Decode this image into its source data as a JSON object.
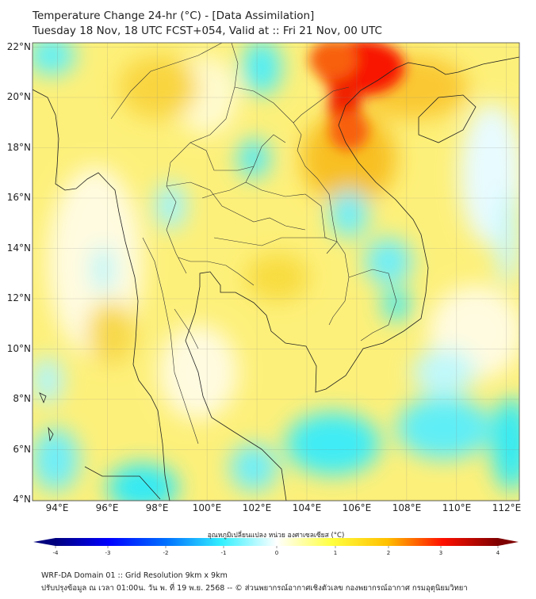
{
  "title": {
    "line1": "Temperature Change 24-hr (°C) - [Data Assimilation]",
    "line2": "Tuesday 18 Nov, 18 UTC FCST+054, Valid at :: Fri 21 Nov, 00 UTC"
  },
  "map": {
    "lat_labels": [
      "22°N",
      "20°N",
      "18°N",
      "16°N",
      "14°N",
      "12°N",
      "10°N",
      "8°N",
      "6°N",
      "4°N"
    ],
    "lon_labels": [
      "94°E",
      "96°E",
      "98°E",
      "100°E",
      "102°E",
      "104°E",
      "106°E",
      "108°E",
      "110°E",
      "112°E"
    ]
  },
  "colorbar": {
    "label": "อุณหภูมิเปลี่ยนแปลง หน่วย องศาเซลเซียส (°C)",
    "ticks": [
      "-4",
      "-3",
      "-2",
      "-1",
      "0",
      "1",
      "2",
      "3",
      "4"
    ],
    "range": [
      -4,
      4
    ],
    "colors": [
      "#00007f",
      "#0000ff",
      "#0080ff",
      "#33f0ff",
      "#ffffff",
      "#ffff40",
      "#ffc800",
      "#ff2000",
      "#7f0000"
    ]
  },
  "footer": {
    "line1": "WRF-DA Domain 01 :: Grid Resolution 9km x 9km",
    "line2": "ปรับปรุงข้อมูล ณ เวลา 01:00น. วัน พ. ที่ 19 พ.ย. 2568 -- © ส่วนพยากรณ์อากาศเชิงตัวเลข กองพยากรณ์อากาศ กรมอุตุนิยมวิทยา"
  }
}
